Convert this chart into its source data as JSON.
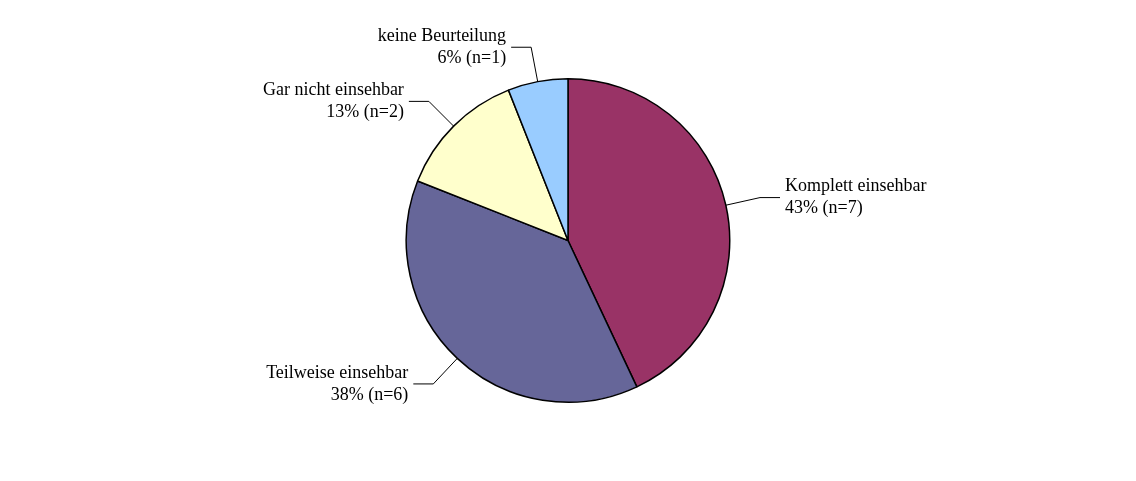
{
  "chart_data": {
    "type": "pie",
    "categories": [
      "Komplett einsehbar",
      "Teilweise einsehbar",
      "Gar nicht einsehbar",
      "keine Beurteilung"
    ],
    "values": [
      43,
      38,
      13,
      6
    ],
    "value_labels": [
      "43% (n=7)",
      "38% (n=6)",
      "13% (n=2)",
      "6% (n=1)"
    ],
    "colors": [
      "#993366",
      "#666699",
      "#ffffcc",
      "#99ccff"
    ],
    "legend": false
  }
}
